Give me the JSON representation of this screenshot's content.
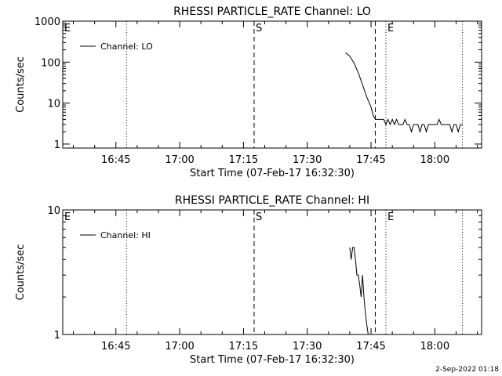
{
  "footer_date": "2-Sep-2022 01:18",
  "chart_data": [
    {
      "type": "line",
      "title": "RHESSI PARTICLE_RATE Channel: LO",
      "xlabel": "Start Time (07-Feb-17 16:32:30)",
      "ylabel": "Counts/sec",
      "yscale": "log",
      "xlim": [
        "16:32:30",
        "18:11:00"
      ],
      "ylim": [
        0.8,
        1000
      ],
      "x_ticks": [
        "16:45",
        "17:00",
        "17:15",
        "17:30",
        "17:45",
        "18:00"
      ],
      "y_ticks": [
        "1",
        "10",
        "100",
        "1000"
      ],
      "legend": {
        "label": "Channel: LO",
        "placement": "top-left"
      },
      "markers": [
        {
          "label": "E",
          "time": "16:32:30",
          "style": "dotted"
        },
        {
          "label": "",
          "time": "16:47:30",
          "style": "dotted"
        },
        {
          "label": "S",
          "time": "17:17:30",
          "style": "dashed"
        },
        {
          "label": "",
          "time": "17:46:00",
          "style": "dashed"
        },
        {
          "label": "E",
          "time": "17:48:30",
          "style": "dotted"
        },
        {
          "label": "",
          "time": "18:06:30",
          "style": "dotted"
        }
      ],
      "series": [
        {
          "name": "Channel: LO",
          "x": [
            "17:39:00",
            "17:40:00",
            "17:41:00",
            "17:42:00",
            "17:43:00",
            "17:44:00",
            "17:45:00",
            "17:45:30",
            "17:46:00",
            "17:46:30",
            "17:47:00",
            "17:47:30",
            "17:48:00",
            "17:48:30",
            "17:49:00",
            "17:49:30",
            "17:50:00",
            "17:50:30",
            "17:51:00",
            "17:51:30",
            "17:52:00",
            "17:52:30",
            "17:53:00",
            "17:53:30",
            "17:54:00",
            "17:54:30",
            "17:55:00",
            "17:55:30",
            "17:56:00",
            "17:56:30",
            "17:57:00",
            "17:57:30",
            "17:58:00",
            "17:58:30",
            "17:59:00",
            "17:59:30",
            "18:00:00",
            "18:00:30",
            "18:01:00",
            "18:01:30",
            "18:02:00",
            "18:02:30",
            "18:03:00",
            "18:03:30",
            "18:04:00",
            "18:04:30",
            "18:05:00",
            "18:05:30",
            "18:06:00",
            "18:06:30"
          ],
          "y": [
            170,
            140,
            95,
            55,
            28,
            14,
            8,
            5,
            4,
            4,
            4,
            4,
            4,
            3,
            4,
            3,
            4,
            3,
            4,
            3,
            3,
            3,
            4,
            3,
            3,
            2,
            3,
            3,
            3,
            2,
            3,
            3,
            2,
            3,
            3,
            3,
            3,
            3,
            4,
            3,
            3,
            3,
            3,
            3,
            2,
            3,
            3,
            2,
            3,
            3
          ]
        }
      ]
    },
    {
      "type": "line",
      "title": "RHESSI PARTICLE_RATE Channel: HI",
      "xlabel": "Start Time (07-Feb-17 16:32:30)",
      "ylabel": "Counts/sec",
      "yscale": "log",
      "xlim": [
        "16:32:30",
        "18:11:00"
      ],
      "ylim": [
        1,
        10
      ],
      "x_ticks": [
        "16:45",
        "17:00",
        "17:15",
        "17:30",
        "17:45",
        "18:00"
      ],
      "y_ticks": [
        "1",
        "10"
      ],
      "legend": {
        "label": "Channel: HI",
        "placement": "top-left"
      },
      "markers": [
        {
          "label": "E",
          "time": "16:32:30",
          "style": "dotted"
        },
        {
          "label": "",
          "time": "16:47:30",
          "style": "dotted"
        },
        {
          "label": "S",
          "time": "17:17:30",
          "style": "dashed"
        },
        {
          "label": "",
          "time": "17:46:00",
          "style": "dashed"
        },
        {
          "label": "E",
          "time": "17:48:30",
          "style": "dotted"
        },
        {
          "label": "",
          "time": "18:06:30",
          "style": "dotted"
        }
      ],
      "series": [
        {
          "name": "Channel: HI",
          "x": [
            "17:40:00",
            "17:40:20",
            "17:40:40",
            "17:41:00",
            "17:41:20",
            "17:41:40",
            "17:42:00",
            "17:42:20",
            "17:42:40",
            "17:43:00",
            "17:43:20",
            "17:43:40",
            "17:44:00",
            "17:44:20"
          ],
          "y": [
            5,
            4,
            5,
            5,
            4,
            3,
            3,
            2.5,
            2,
            3,
            2,
            1.5,
            1.2,
            1
          ]
        }
      ]
    }
  ]
}
